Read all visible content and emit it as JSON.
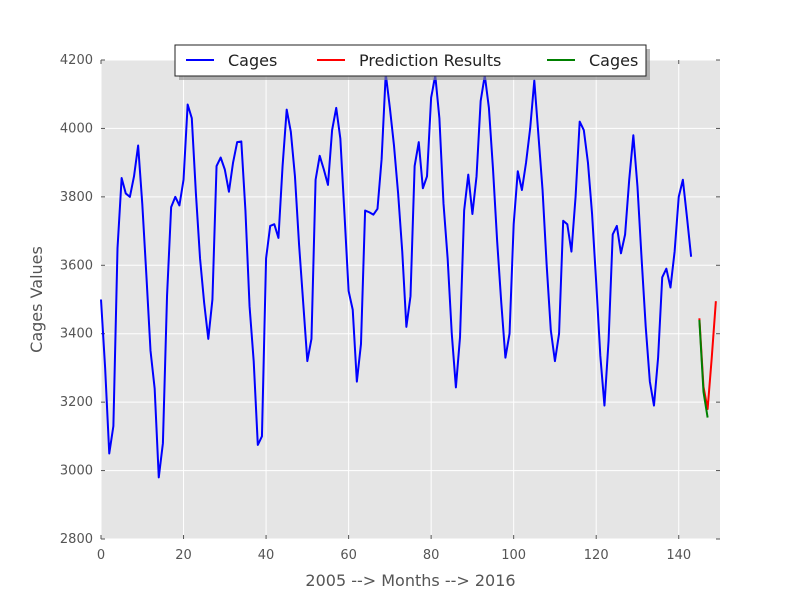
{
  "chart_data": {
    "type": "line",
    "title": "",
    "xlabel": "2005 --> Months --> 2016",
    "ylabel": "Cages Values",
    "xlim": [
      0,
      150
    ],
    "ylim": [
      2800,
      4200
    ],
    "xticks": [
      0,
      20,
      40,
      60,
      80,
      100,
      120,
      140
    ],
    "yticks": [
      2800,
      3000,
      3200,
      3400,
      3600,
      3800,
      4000,
      4200
    ],
    "grid": true,
    "legend_position": "top-center",
    "series": [
      {
        "name": "Cages",
        "color": "#0000ff",
        "x": [
          0,
          1,
          2,
          3,
          4,
          5,
          6,
          7,
          8,
          9,
          10,
          11,
          12,
          13,
          14,
          15,
          16,
          17,
          18,
          19,
          20,
          21,
          22,
          23,
          24,
          25,
          26,
          27,
          28,
          29,
          30,
          31,
          32,
          33,
          34,
          35,
          36,
          37,
          38,
          39,
          40,
          41,
          42,
          43,
          44,
          45,
          46,
          47,
          48,
          49,
          50,
          51,
          52,
          53,
          54,
          55,
          56,
          57,
          58,
          59,
          60,
          61,
          62,
          63,
          64,
          65,
          66,
          67,
          68,
          69,
          70,
          71,
          72,
          73,
          74,
          75,
          76,
          77,
          78,
          79,
          80,
          81,
          82,
          83,
          84,
          85,
          86,
          87,
          88,
          89,
          90,
          91,
          92,
          93,
          94,
          95,
          96,
          97,
          98,
          99,
          100,
          101,
          102,
          103,
          104,
          105,
          106,
          107,
          108,
          109,
          110,
          111,
          112,
          113,
          114,
          115,
          116,
          117,
          118,
          119,
          120,
          121,
          122,
          123,
          124,
          125,
          126,
          127,
          128,
          129,
          130,
          131,
          132,
          133,
          134,
          135,
          136,
          137,
          138,
          139,
          140,
          141,
          142,
          143
        ],
        "values": [
          3500,
          3300,
          3050,
          3130,
          3650,
          3855,
          3810,
          3800,
          3860,
          3950,
          3780,
          3570,
          3350,
          3240,
          2980,
          3080,
          3510,
          3770,
          3800,
          3775,
          3850,
          4070,
          4030,
          3810,
          3620,
          3490,
          3385,
          3500,
          3890,
          3915,
          3880,
          3815,
          3900,
          3960,
          3962,
          3760,
          3480,
          3320,
          3075,
          3100,
          3620,
          3715,
          3720,
          3680,
          3890,
          4055,
          3990,
          3860,
          3660,
          3490,
          3320,
          3385,
          3850,
          3920,
          3880,
          3835,
          3995,
          4060,
          3970,
          3750,
          3525,
          3470,
          3260,
          3370,
          3760,
          3755,
          3748,
          3765,
          3910,
          4160,
          4060,
          3950,
          3810,
          3640,
          3420,
          3510,
          3890,
          3960,
          3825,
          3860,
          4090,
          4155,
          4030,
          3780,
          3620,
          3400,
          3243,
          3390,
          3760,
          3865,
          3750,
          3860,
          4080,
          4155,
          4060,
          3880,
          3670,
          3490,
          3330,
          3400,
          3720,
          3875,
          3820,
          3900,
          4000,
          4140,
          3980,
          3820,
          3600,
          3410,
          3320,
          3400,
          3730,
          3720,
          3640,
          3800,
          4020,
          3995,
          3900,
          3750,
          3550,
          3335,
          3190,
          3380,
          3690,
          3715,
          3635,
          3690,
          3850,
          3980,
          3830,
          3620,
          3420,
          3260,
          3190,
          3330,
          3565,
          3590,
          3535,
          3640,
          3800,
          3850,
          3740,
          3625
        ]
      },
      {
        "name": "Prediction Results",
        "color": "#ff0000",
        "x": [
          145,
          146,
          147,
          148,
          149
        ],
        "values": [
          3445,
          3245,
          3180,
          3330,
          3495
        ]
      },
      {
        "name": "Cages",
        "color": "#008000",
        "x": [
          145,
          146,
          147
        ],
        "values": [
          3440,
          3230,
          3155
        ]
      }
    ]
  }
}
